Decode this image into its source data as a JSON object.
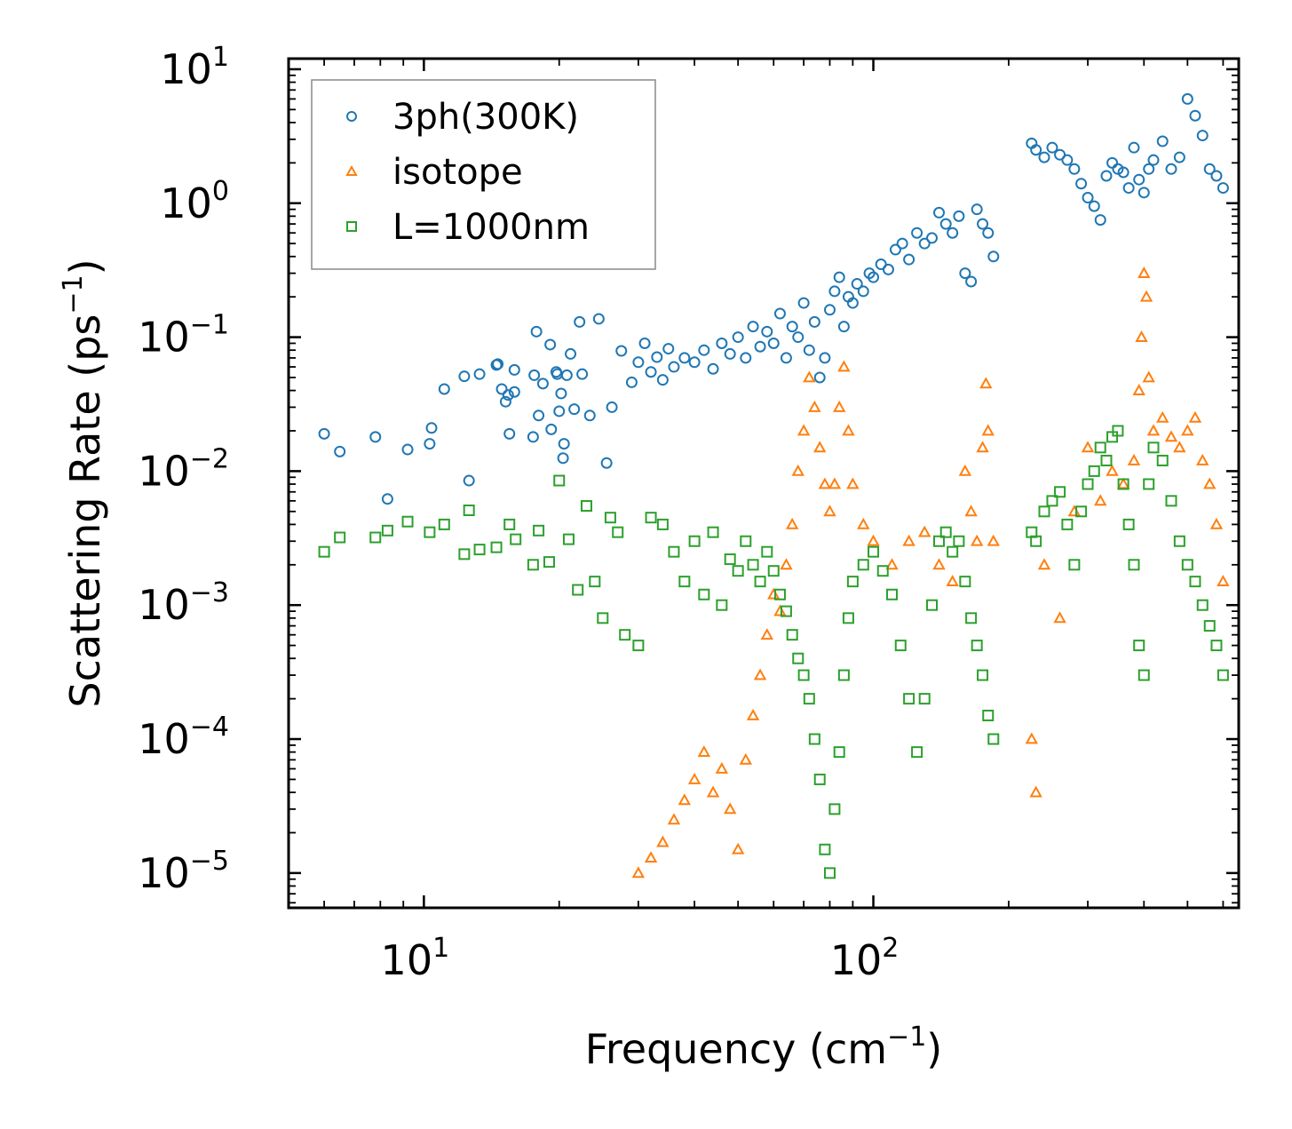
{
  "chart_data": {
    "type": "scatter",
    "xscale": "log",
    "yscale": "log",
    "xlim": [
      5,
      650
    ],
    "ylim": [
      5.5e-06,
      12
    ],
    "xlabel": {
      "base": "Frequency (cm",
      "sup": "−1",
      "close": ")"
    },
    "ylabel": {
      "base": "Scattering Rate (ps",
      "sup": "−1",
      "close": ")"
    },
    "xticks": [
      {
        "value": 10,
        "base": "10",
        "exp": "1"
      },
      {
        "value": 100,
        "base": "10",
        "exp": "2"
      }
    ],
    "yticks": [
      {
        "value": 10,
        "base": "10",
        "exp": "1"
      },
      {
        "value": 1,
        "base": "10",
        "exp": "0"
      },
      {
        "value": 0.1,
        "base": "10",
        "exp": "−1"
      },
      {
        "value": 0.01,
        "base": "10",
        "exp": "−2"
      },
      {
        "value": 0.001,
        "base": "10",
        "exp": "−3"
      },
      {
        "value": 0.0001,
        "base": "10",
        "exp": "−4"
      },
      {
        "value": 1e-05,
        "base": "10",
        "exp": "−5"
      }
    ],
    "legend_position": "top-left",
    "series": [
      {
        "name": "3ph(300K)",
        "color": "#1f77b4",
        "marker": "circle",
        "points": [
          [
            6,
            0.019
          ],
          [
            6.5,
            0.014
          ],
          [
            7.8,
            0.018
          ],
          [
            8.3,
            0.0062
          ],
          [
            9.2,
            0.0145
          ],
          [
            10.3,
            0.016
          ],
          [
            10.4,
            0.021
          ],
          [
            11.1,
            0.041
          ],
          [
            12.3,
            0.051
          ],
          [
            12.6,
            0.0085
          ],
          [
            13.3,
            0.053
          ],
          [
            14.5,
            0.062
          ],
          [
            14.6,
            0.063
          ],
          [
            14.9,
            0.041
          ],
          [
            15.2,
            0.033
          ],
          [
            15.4,
            0.037
          ],
          [
            15.5,
            0.019
          ],
          [
            15.9,
            0.039
          ],
          [
            15.9,
            0.057
          ],
          [
            17.5,
            0.018
          ],
          [
            17.6,
            0.052
          ],
          [
            17.8,
            0.11
          ],
          [
            18.0,
            0.026
          ],
          [
            18.4,
            0.045
          ],
          [
            19.1,
            0.088
          ],
          [
            19.2,
            0.0205
          ],
          [
            19.7,
            0.055
          ],
          [
            19.8,
            0.053
          ],
          [
            20.0,
            0.028
          ],
          [
            20.2,
            0.038
          ],
          [
            20.4,
            0.0125
          ],
          [
            20.5,
            0.016
          ],
          [
            20.8,
            0.052
          ],
          [
            21.2,
            0.075
          ],
          [
            21.6,
            0.029
          ],
          [
            22.2,
            0.13
          ],
          [
            22.5,
            0.053
          ],
          [
            23.4,
            0.026
          ],
          [
            24.5,
            0.137
          ],
          [
            25.5,
            0.0115
          ],
          [
            26.2,
            0.03
          ],
          [
            27.5,
            0.079
          ],
          [
            29,
            0.046
          ],
          [
            30,
            0.065
          ],
          [
            31,
            0.09
          ],
          [
            32,
            0.055
          ],
          [
            33,
            0.071
          ],
          [
            34,
            0.048
          ],
          [
            35,
            0.082
          ],
          [
            36,
            0.06
          ],
          [
            38,
            0.07
          ],
          [
            40,
            0.065
          ],
          [
            42,
            0.08
          ],
          [
            44,
            0.058
          ],
          [
            46,
            0.09
          ],
          [
            48,
            0.075
          ],
          [
            50,
            0.1
          ],
          [
            52,
            0.07
          ],
          [
            54,
            0.12
          ],
          [
            56,
            0.085
          ],
          [
            58,
            0.11
          ],
          [
            60,
            0.09
          ],
          [
            62,
            0.15
          ],
          [
            64,
            0.07
          ],
          [
            66,
            0.12
          ],
          [
            68,
            0.1
          ],
          [
            70,
            0.18
          ],
          [
            72,
            0.08
          ],
          [
            74,
            0.13
          ],
          [
            76,
            0.05
          ],
          [
            78,
            0.07
          ],
          [
            80,
            0.16
          ],
          [
            82,
            0.22
          ],
          [
            84,
            0.28
          ],
          [
            86,
            0.12
          ],
          [
            88,
            0.2
          ],
          [
            90,
            0.18
          ],
          [
            92,
            0.25
          ],
          [
            95,
            0.22
          ],
          [
            98,
            0.3
          ],
          [
            100,
            0.28
          ],
          [
            104,
            0.35
          ],
          [
            108,
            0.32
          ],
          [
            112,
            0.45
          ],
          [
            116,
            0.5
          ],
          [
            120,
            0.38
          ],
          [
            125,
            0.6
          ],
          [
            130,
            0.5
          ],
          [
            135,
            0.55
          ],
          [
            140,
            0.85
          ],
          [
            145,
            0.7
          ],
          [
            150,
            0.6
          ],
          [
            155,
            0.8
          ],
          [
            160,
            0.3
          ],
          [
            165,
            0.26
          ],
          [
            170,
            0.9
          ],
          [
            175,
            0.7
          ],
          [
            180,
            0.6
          ],
          [
            185,
            0.4
          ],
          [
            225,
            2.8
          ],
          [
            230,
            2.5
          ],
          [
            240,
            2.2
          ],
          [
            250,
            2.6
          ],
          [
            260,
            2.3
          ],
          [
            270,
            2.1
          ],
          [
            280,
            1.8
          ],
          [
            290,
            1.4
          ],
          [
            300,
            1.1
          ],
          [
            310,
            0.95
          ],
          [
            320,
            0.75
          ],
          [
            330,
            1.6
          ],
          [
            340,
            2.0
          ],
          [
            350,
            1.8
          ],
          [
            360,
            1.7
          ],
          [
            370,
            1.3
          ],
          [
            380,
            2.6
          ],
          [
            390,
            1.5
          ],
          [
            400,
            1.2
          ],
          [
            410,
            1.8
          ],
          [
            420,
            2.1
          ],
          [
            440,
            2.9
          ],
          [
            460,
            1.8
          ],
          [
            480,
            2.2
          ],
          [
            500,
            6.0
          ],
          [
            520,
            4.5
          ],
          [
            540,
            3.2
          ],
          [
            560,
            1.8
          ],
          [
            580,
            1.6
          ],
          [
            600,
            1.3
          ]
        ]
      },
      {
        "name": "isotope",
        "color": "#ff7f0e",
        "marker": "triangle",
        "points": [
          [
            30,
            1e-05
          ],
          [
            32,
            1.3e-05
          ],
          [
            34,
            1.7e-05
          ],
          [
            36,
            2.5e-05
          ],
          [
            38,
            3.5e-05
          ],
          [
            40,
            5e-05
          ],
          [
            42,
            8e-05
          ],
          [
            44,
            4e-05
          ],
          [
            46,
            6e-05
          ],
          [
            48,
            3e-05
          ],
          [
            50,
            1.5e-05
          ],
          [
            52,
            7e-05
          ],
          [
            54,
            0.00015
          ],
          [
            56,
            0.0003
          ],
          [
            58,
            0.0006
          ],
          [
            60,
            0.0012
          ],
          [
            62,
            0.0009
          ],
          [
            64,
            0.002
          ],
          [
            66,
            0.004
          ],
          [
            68,
            0.01
          ],
          [
            70,
            0.02
          ],
          [
            72,
            0.05
          ],
          [
            74,
            0.03
          ],
          [
            76,
            0.015
          ],
          [
            78,
            0.008
          ],
          [
            80,
            0.005
          ],
          [
            82,
            0.008
          ],
          [
            84,
            0.03
          ],
          [
            86,
            0.06
          ],
          [
            88,
            0.02
          ],
          [
            90,
            0.008
          ],
          [
            95,
            0.004
          ],
          [
            100,
            0.003
          ],
          [
            110,
            0.002
          ],
          [
            120,
            0.003
          ],
          [
            130,
            0.0035
          ],
          [
            140,
            0.002
          ],
          [
            150,
            0.0015
          ],
          [
            160,
            0.01
          ],
          [
            165,
            0.005
          ],
          [
            170,
            0.003
          ],
          [
            175,
            0.015
          ],
          [
            178,
            0.045
          ],
          [
            180,
            0.02
          ],
          [
            185,
            0.003
          ],
          [
            225,
            0.0001
          ],
          [
            230,
            4e-05
          ],
          [
            240,
            0.002
          ],
          [
            260,
            0.0008
          ],
          [
            280,
            0.005
          ],
          [
            300,
            0.015
          ],
          [
            320,
            0.006
          ],
          [
            340,
            0.01
          ],
          [
            360,
            0.008
          ],
          [
            380,
            0.012
          ],
          [
            390,
            0.04
          ],
          [
            395,
            0.1
          ],
          [
            400,
            0.3
          ],
          [
            405,
            0.2
          ],
          [
            410,
            0.05
          ],
          [
            420,
            0.02
          ],
          [
            440,
            0.025
          ],
          [
            460,
            0.018
          ],
          [
            480,
            0.015
          ],
          [
            500,
            0.02
          ],
          [
            520,
            0.025
          ],
          [
            540,
            0.012
          ],
          [
            560,
            0.008
          ],
          [
            580,
            0.004
          ],
          [
            600,
            0.0015
          ]
        ]
      },
      {
        "name": "L=1000nm",
        "color": "#2ca02c",
        "marker": "square",
        "points": [
          [
            6,
            0.0025
          ],
          [
            6.5,
            0.0032
          ],
          [
            7.8,
            0.0032
          ],
          [
            8.3,
            0.0036
          ],
          [
            9.2,
            0.0042
          ],
          [
            10.3,
            0.0035
          ],
          [
            11.1,
            0.004
          ],
          [
            12.3,
            0.0024
          ],
          [
            12.6,
            0.0051
          ],
          [
            13.3,
            0.0026
          ],
          [
            14.5,
            0.0027
          ],
          [
            15.5,
            0.004
          ],
          [
            16,
            0.0031
          ],
          [
            17.5,
            0.002
          ],
          [
            18,
            0.0036
          ],
          [
            19,
            0.0021
          ],
          [
            20,
            0.0085
          ],
          [
            21,
            0.0031
          ],
          [
            22,
            0.0013
          ],
          [
            23,
            0.0055
          ],
          [
            24,
            0.0015
          ],
          [
            25,
            0.0008
          ],
          [
            26,
            0.0045
          ],
          [
            27,
            0.0035
          ],
          [
            28,
            0.0006
          ],
          [
            30,
            0.0005
          ],
          [
            32,
            0.0045
          ],
          [
            34,
            0.004
          ],
          [
            36,
            0.0025
          ],
          [
            38,
            0.0015
          ],
          [
            40,
            0.003
          ],
          [
            42,
            0.0012
          ],
          [
            44,
            0.0035
          ],
          [
            46,
            0.001
          ],
          [
            48,
            0.0022
          ],
          [
            50,
            0.0018
          ],
          [
            52,
            0.003
          ],
          [
            54,
            0.002
          ],
          [
            56,
            0.0015
          ],
          [
            58,
            0.0025
          ],
          [
            60,
            0.0018
          ],
          [
            62,
            0.0012
          ],
          [
            64,
            0.0009
          ],
          [
            66,
            0.0006
          ],
          [
            68,
            0.0004
          ],
          [
            70,
            0.0003
          ],
          [
            72,
            0.0002
          ],
          [
            74,
            0.0001
          ],
          [
            76,
            5e-05
          ],
          [
            78,
            1.5e-05
          ],
          [
            80,
            1e-05
          ],
          [
            82,
            3e-05
          ],
          [
            84,
            8e-05
          ],
          [
            86,
            0.0003
          ],
          [
            88,
            0.0008
          ],
          [
            90,
            0.0015
          ],
          [
            95,
            0.002
          ],
          [
            100,
            0.0025
          ],
          [
            105,
            0.0018
          ],
          [
            110,
            0.0012
          ],
          [
            115,
            0.0005
          ],
          [
            120,
            0.0002
          ],
          [
            125,
            8e-05
          ],
          [
            130,
            0.0002
          ],
          [
            135,
            0.001
          ],
          [
            140,
            0.003
          ],
          [
            145,
            0.0035
          ],
          [
            150,
            0.0025
          ],
          [
            155,
            0.003
          ],
          [
            160,
            0.0015
          ],
          [
            165,
            0.0008
          ],
          [
            170,
            0.0005
          ],
          [
            175,
            0.0003
          ],
          [
            180,
            0.00015
          ],
          [
            185,
            0.0001
          ],
          [
            225,
            0.0035
          ],
          [
            230,
            0.003
          ],
          [
            240,
            0.005
          ],
          [
            250,
            0.006
          ],
          [
            260,
            0.007
          ],
          [
            270,
            0.004
          ],
          [
            280,
            0.002
          ],
          [
            290,
            0.005
          ],
          [
            300,
            0.008
          ],
          [
            310,
            0.01
          ],
          [
            320,
            0.015
          ],
          [
            330,
            0.012
          ],
          [
            340,
            0.018
          ],
          [
            350,
            0.02
          ],
          [
            360,
            0.008
          ],
          [
            370,
            0.004
          ],
          [
            380,
            0.002
          ],
          [
            390,
            0.0005
          ],
          [
            400,
            0.0003
          ],
          [
            410,
            0.008
          ],
          [
            420,
            0.015
          ],
          [
            440,
            0.012
          ],
          [
            460,
            0.006
          ],
          [
            480,
            0.003
          ],
          [
            500,
            0.002
          ],
          [
            520,
            0.0015
          ],
          [
            540,
            0.001
          ],
          [
            560,
            0.0007
          ],
          [
            580,
            0.0005
          ],
          [
            600,
            0.0003
          ]
        ]
      }
    ]
  }
}
